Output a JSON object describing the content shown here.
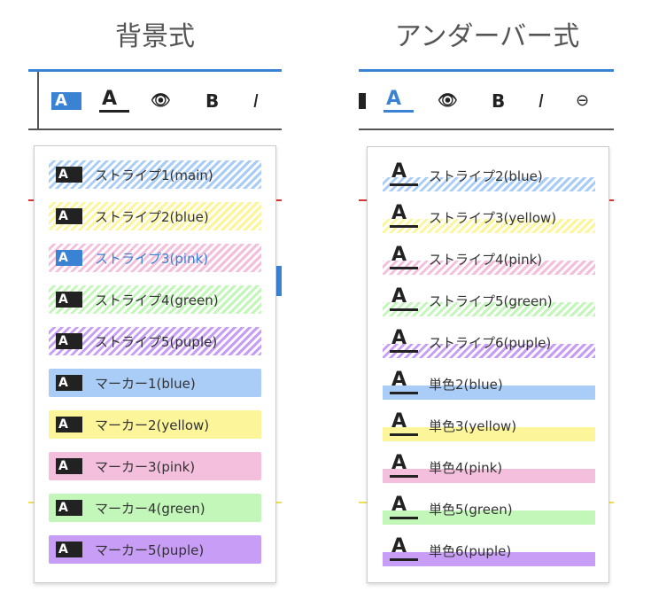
{
  "left": {
    "title": "背景式",
    "toolbar": [
      {
        "icon": "background-highlight-icon",
        "active": true
      },
      {
        "icon": "underline-highlight-icon"
      },
      {
        "icon": "eye-icon"
      },
      {
        "label": "B"
      },
      {
        "label": "I"
      }
    ],
    "items": [
      {
        "label": "ストライプ1(main)",
        "style": "stripe",
        "color": "#a9cdf7"
      },
      {
        "label": "ストライプ2(blue)",
        "style": "stripe",
        "color": "#fdf59a"
      },
      {
        "label": "ストライプ3(pink)",
        "style": "stripe",
        "color": "#f3bfdc",
        "selected": true
      },
      {
        "label": "ストライプ4(green)",
        "style": "stripe",
        "color": "#c2f7b9"
      },
      {
        "label": "ストライプ5(puple)",
        "style": "stripe",
        "color": "#c79df5"
      },
      {
        "label": "マーカー1(blue)",
        "style": "solid",
        "color": "#a9cdf7"
      },
      {
        "label": "マーカー2(yellow)",
        "style": "solid",
        "color": "#fdf59a"
      },
      {
        "label": "マーカー3(pink)",
        "style": "solid",
        "color": "#f3bfdc"
      },
      {
        "label": "マーカー4(green)",
        "style": "solid",
        "color": "#c2f7b9"
      },
      {
        "label": "マーカー5(puple)",
        "style": "solid",
        "color": "#c79df5"
      }
    ]
  },
  "right": {
    "title": "アンダーバー式",
    "toolbar": [
      {
        "icon": "background-highlight-icon"
      },
      {
        "icon": "underline-highlight-icon",
        "active": true
      },
      {
        "icon": "eye-icon"
      },
      {
        "label": "B"
      },
      {
        "label": "I"
      },
      {
        "icon": "link-icon"
      }
    ],
    "items": [
      {
        "label": "ストライプ2(blue)",
        "style": "stripe",
        "color": "#a9cdf7"
      },
      {
        "label": "ストライプ3(yellow)",
        "style": "stripe",
        "color": "#fdf59a"
      },
      {
        "label": "ストライプ4(pink)",
        "style": "stripe",
        "color": "#f3bfdc"
      },
      {
        "label": "ストライプ5(green)",
        "style": "stripe",
        "color": "#c2f7b9"
      },
      {
        "label": "ストライプ6(puple)",
        "style": "stripe",
        "color": "#c79df5"
      },
      {
        "label": "単色2(blue)",
        "style": "solid",
        "color": "#a9cdf7"
      },
      {
        "label": "単色3(yellow)",
        "style": "solid",
        "color": "#fdf59a"
      },
      {
        "label": "単色4(pink)",
        "style": "solid",
        "color": "#f3bfdc"
      },
      {
        "label": "単色5(green)",
        "style": "solid",
        "color": "#c2f7b9"
      },
      {
        "label": "単色6(puple)",
        "style": "solid",
        "color": "#c79df5"
      }
    ]
  },
  "accent": "#3a82d4",
  "selected_text_color": "#3a82d4"
}
